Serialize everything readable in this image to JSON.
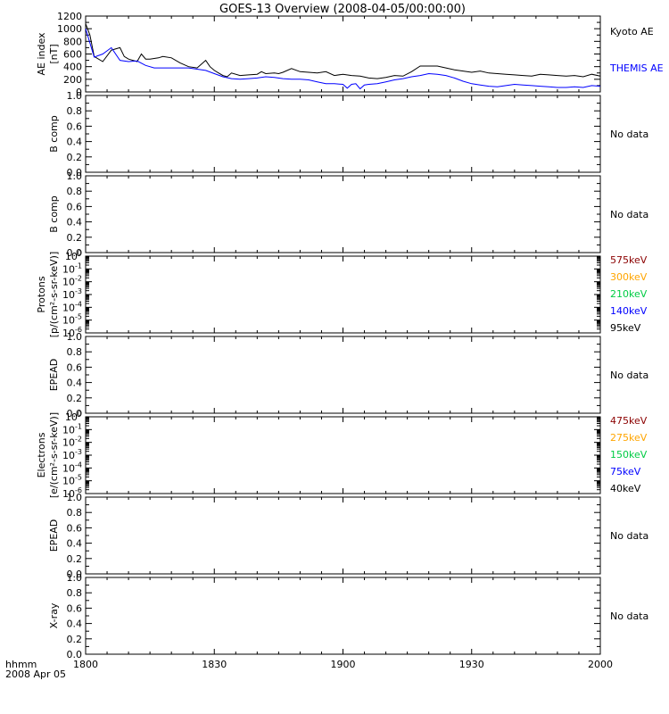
{
  "title": "GOES-13 Overview (2008-04-05/00:00:00)",
  "x_axis": {
    "corner_label_line1": "hhmm",
    "corner_label_line2": "2008 Apr 05",
    "ticks": [
      "1800",
      "1830",
      "1900",
      "1930",
      "2000"
    ]
  },
  "chart_data": [
    {
      "type": "line",
      "ylabel_line1": "AE index",
      "ylabel_line2": "[nT]",
      "ylim": [
        0,
        1200
      ],
      "yticks": [
        "0",
        "200",
        "400",
        "600",
        "800",
        "1000",
        "1200"
      ],
      "x_minutes_range": [
        0,
        120
      ],
      "series": [
        {
          "name": "Kyoto AE",
          "color": "#000000",
          "x": [
            0,
            1,
            2,
            4,
            6,
            8,
            9,
            10,
            12,
            13,
            14,
            15,
            17,
            18,
            20,
            22,
            24,
            26,
            28,
            29,
            30,
            31,
            32,
            33,
            34,
            36,
            38,
            40,
            41,
            42,
            44,
            45,
            46,
            48,
            50,
            52,
            54,
            56,
            58,
            60,
            62,
            64,
            66,
            68,
            70,
            72,
            74,
            76,
            78,
            80,
            82,
            84,
            86,
            88,
            90,
            92,
            94,
            96,
            98,
            100,
            102,
            104,
            106,
            108,
            110,
            112,
            114,
            116,
            118,
            120
          ],
          "y": [
            1080,
            900,
            560,
            480,
            660,
            700,
            560,
            520,
            480,
            600,
            520,
            520,
            540,
            560,
            540,
            460,
            400,
            380,
            500,
            400,
            340,
            300,
            260,
            240,
            300,
            260,
            270,
            280,
            320,
            290,
            300,
            290,
            310,
            370,
            320,
            310,
            300,
            320,
            260,
            280,
            260,
            250,
            220,
            210,
            230,
            260,
            250,
            320,
            410,
            410,
            410,
            380,
            350,
            330,
            310,
            330,
            300,
            290,
            280,
            270,
            260,
            250,
            280,
            270,
            260,
            250,
            260,
            240,
            280,
            250
          ]
        },
        {
          "name": "THEMIS AE",
          "color": "#0000ff",
          "x": [
            0,
            2,
            4,
            6,
            8,
            10,
            12,
            14,
            16,
            18,
            20,
            22,
            24,
            26,
            28,
            30,
            32,
            34,
            36,
            38,
            40,
            42,
            44,
            46,
            48,
            50,
            52,
            54,
            56,
            58,
            60,
            61,
            62,
            63,
            64,
            65,
            66,
            68,
            70,
            72,
            74,
            76,
            78,
            80,
            82,
            84,
            86,
            88,
            90,
            92,
            94,
            96,
            98,
            100,
            102,
            104,
            106,
            108,
            110,
            112,
            114,
            116,
            118,
            120
          ],
          "y": [
            1000,
            550,
            600,
            700,
            500,
            480,
            490,
            420,
            380,
            380,
            380,
            380,
            380,
            360,
            340,
            290,
            240,
            210,
            200,
            210,
            220,
            240,
            230,
            210,
            200,
            200,
            190,
            160,
            130,
            130,
            120,
            60,
            120,
            130,
            50,
            110,
            120,
            130,
            160,
            190,
            210,
            240,
            260,
            290,
            280,
            260,
            220,
            170,
            130,
            110,
            90,
            80,
            100,
            120,
            110,
            100,
            90,
            80,
            70,
            70,
            80,
            70,
            100,
            90
          ]
        }
      ]
    },
    {
      "type": "line",
      "ylabel_line1": "B comp",
      "ylim": [
        0,
        1
      ],
      "yticks": [
        "0.0",
        "0.2",
        "0.4",
        "0.6",
        "0.8",
        "1.0"
      ],
      "note": "No data",
      "series": []
    },
    {
      "type": "line",
      "ylabel_line1": "B comp",
      "ylim": [
        0,
        1
      ],
      "yticks": [
        "0.0",
        "0.2",
        "0.4",
        "0.6",
        "0.8",
        "1.0"
      ],
      "note": "No data",
      "series": []
    },
    {
      "type": "line",
      "log_scale": true,
      "ylabel_line1": "Protons",
      "ylabel_line2": "[p/(cm²-s-sr-keV)]",
      "ylim_exponents": [
        -6,
        0
      ],
      "yticks_exponents": [
        "-6",
        "-5",
        "-4",
        "-3",
        "-2",
        "-1",
        "0"
      ],
      "channels": [
        {
          "label": "575keV",
          "color": "#8b0000"
        },
        {
          "label": "300keV",
          "color": "#ffa500"
        },
        {
          "label": "210keV",
          "color": "#00cc44"
        },
        {
          "label": "140keV",
          "color": "#0000ff"
        },
        {
          "label": "95keV",
          "color": "#000000"
        }
      ],
      "series": []
    },
    {
      "type": "line",
      "ylabel_line1": "EPEAD",
      "ylim": [
        0,
        1
      ],
      "yticks": [
        "0.0",
        "0.2",
        "0.4",
        "0.6",
        "0.8",
        "1.0"
      ],
      "note": "No data",
      "series": []
    },
    {
      "type": "line",
      "log_scale": true,
      "ylabel_line1": "Electrons",
      "ylabel_line2": "[e/(cm²-s-sr-keV)]",
      "ylim_exponents": [
        -6,
        0
      ],
      "yticks_exponents": [
        "-6",
        "-5",
        "-4",
        "-3",
        "-2",
        "-1",
        "0"
      ],
      "channels": [
        {
          "label": "475keV",
          "color": "#8b0000"
        },
        {
          "label": "275keV",
          "color": "#ffa500"
        },
        {
          "label": "150keV",
          "color": "#00cc44"
        },
        {
          "label": "75keV",
          "color": "#0000ff"
        },
        {
          "label": "40keV",
          "color": "#000000"
        }
      ],
      "series": []
    },
    {
      "type": "line",
      "ylabel_line1": "EPEAD",
      "ylim": [
        0,
        1
      ],
      "yticks": [
        "0.0",
        "0.2",
        "0.4",
        "0.6",
        "0.8",
        "1.0"
      ],
      "note": "No data",
      "series": []
    },
    {
      "type": "line",
      "ylabel_line1": "X-ray",
      "ylim": [
        0,
        1
      ],
      "yticks": [
        "0.0",
        "0.2",
        "0.4",
        "0.6",
        "0.8",
        "1.0"
      ],
      "note": "No data",
      "series": []
    }
  ]
}
